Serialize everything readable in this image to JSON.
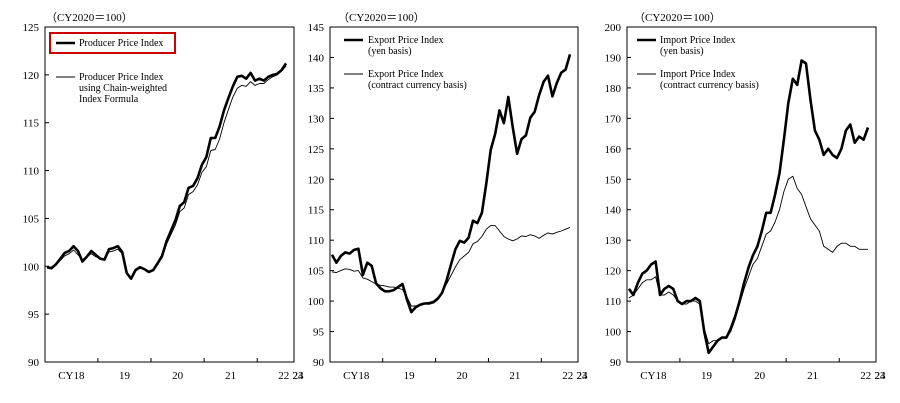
{
  "chart_data": [
    {
      "type": "line",
      "unit_label": "（CY2020＝100）",
      "ylim": [
        90,
        125
      ],
      "yticks": [
        "90",
        "95",
        "100",
        "105",
        "110",
        "115",
        "120",
        "125"
      ],
      "xticks": [
        "CY18",
        "19",
        "20",
        "21",
        "22",
        "23",
        "24"
      ],
      "legend_highlight": true,
      "series": [
        {
          "name": "Producer Price Index",
          "style": "thick",
          "color": "#000000",
          "values": [
            99.9,
            99.8,
            100.2,
            100.8,
            101.4,
            101.6,
            102.1,
            101.6,
            100.5,
            101.0,
            101.6,
            101.2,
            100.8,
            100.7,
            101.8,
            101.9,
            102.1,
            101.5,
            99.3,
            98.7,
            99.6,
            99.9,
            99.7,
            99.4,
            99.6,
            100.3,
            101.1,
            102.6,
            103.7,
            104.8,
            106.3,
            106.7,
            108.2,
            108.4,
            109.2,
            110.6,
            111.4,
            113.4,
            113.4,
            114.6,
            116.3,
            117.6,
            118.8,
            119.8,
            119.9,
            119.6,
            120.2,
            119.4,
            119.6,
            119.4,
            119.8,
            120.0,
            120.1,
            120.5,
            121.2
          ]
        },
        {
          "name": "Producer Price Index using Chain-weighted Index Formula",
          "style": "thin",
          "color": "#000000",
          "values": [
            99.9,
            99.9,
            100.1,
            100.6,
            101.1,
            101.3,
            101.7,
            101.2,
            100.7,
            101.0,
            101.3,
            101.0,
            100.8,
            100.7,
            101.5,
            101.6,
            101.8,
            101.3,
            99.4,
            98.8,
            99.5,
            99.8,
            99.7,
            99.5,
            99.6,
            100.2,
            100.9,
            102.3,
            103.3,
            104.3,
            105.7,
            106.1,
            107.5,
            107.8,
            108.5,
            109.8,
            110.4,
            112.1,
            112.2,
            113.3,
            115.0,
            116.4,
            117.7,
            118.6,
            118.9,
            118.8,
            119.3,
            118.9,
            119.1,
            119.1,
            119.5,
            119.8,
            120.0,
            120.4,
            120.9
          ]
        }
      ],
      "legend_labels": [
        [
          "Producer Price Index"
        ],
        [
          "Producer Price Index",
          "using Chain-weighted",
          "Index Formula"
        ]
      ]
    },
    {
      "type": "line",
      "unit_label": "（CY2020＝100）",
      "ylim": [
        90,
        145
      ],
      "yticks": [
        "90",
        "95",
        "100",
        "105",
        "110",
        "115",
        "120",
        "125",
        "130",
        "135",
        "140",
        "145"
      ],
      "xticks": [
        "CY18",
        "19",
        "20",
        "21",
        "22",
        "23",
        "24"
      ],
      "legend_highlight": false,
      "series": [
        {
          "name": "Export Price Index (yen basis)",
          "style": "thick",
          "color": "#000000",
          "values": [
            107.6,
            106.3,
            107.4,
            108.0,
            107.8,
            108.4,
            108.6,
            104.3,
            106.3,
            105.8,
            102.9,
            102.1,
            101.6,
            101.6,
            101.8,
            102.3,
            102.8,
            100.3,
            98.2,
            99.0,
            99.4,
            99.6,
            99.6,
            99.8,
            100.4,
            101.4,
            103.4,
            106.0,
            108.5,
            109.9,
            109.6,
            110.4,
            113.2,
            112.8,
            114.5,
            119.3,
            124.8,
            127.4,
            131.3,
            129.2,
            133.5,
            128.6,
            124.2,
            126.6,
            127.2,
            130.1,
            131.1,
            133.8,
            136.0,
            137.0,
            133.6,
            135.8,
            137.5,
            138.0,
            140.5
          ]
        },
        {
          "name": "Export Price Index (contract currency basis)",
          "style": "thin",
          "color": "#000000",
          "values": [
            104.8,
            104.7,
            105.0,
            105.3,
            105.2,
            104.9,
            105.0,
            103.8,
            103.6,
            103.2,
            102.8,
            102.6,
            102.5,
            102.3,
            102.3,
            102.1,
            101.9,
            100.7,
            99.2,
            99.2,
            99.5,
            99.7,
            99.8,
            100.0,
            100.6,
            101.5,
            102.8,
            104.2,
            105.6,
            106.8,
            107.4,
            108.0,
            109.4,
            109.8,
            110.6,
            111.8,
            112.4,
            112.4,
            111.5,
            110.6,
            110.2,
            109.9,
            110.2,
            110.7,
            110.6,
            110.9,
            110.7,
            110.3,
            110.8,
            111.2,
            111.0,
            111.3,
            111.5,
            111.8,
            112.1
          ]
        }
      ],
      "legend_labels": [
        [
          "Export Price Index",
          "(yen basis)"
        ],
        [
          "Export Price Index",
          "(contract currency basis)"
        ]
      ]
    },
    {
      "type": "line",
      "unit_label": "（CY2020＝100）",
      "ylim": [
        90,
        200
      ],
      "yticks": [
        "90",
        "100",
        "110",
        "120",
        "130",
        "140",
        "150",
        "160",
        "170",
        "180",
        "190",
        "200"
      ],
      "xticks": [
        "CY18",
        "19",
        "20",
        "21",
        "22",
        "23",
        "24"
      ],
      "legend_highlight": false,
      "series": [
        {
          "name": "Import Price Index (yen basis)",
          "style": "thick",
          "color": "#000000",
          "values": [
            114,
            112,
            116,
            119,
            120,
            122,
            123,
            112,
            114,
            115,
            114,
            110,
            109,
            110,
            110,
            111,
            110,
            100,
            93,
            95,
            97,
            98,
            98,
            101,
            105,
            110,
            116,
            121,
            125,
            128,
            133,
            139,
            139,
            145,
            152,
            163,
            175,
            183,
            181,
            189,
            188,
            176,
            166,
            163,
            158,
            160,
            158,
            157,
            160,
            166,
            168,
            162,
            164,
            163,
            167
          ]
        },
        {
          "name": "Import Price Index (contract currency basis)",
          "style": "thin",
          "color": "#000000",
          "values": [
            111,
            112,
            114,
            116,
            117,
            117,
            118,
            112,
            112,
            113,
            112,
            110,
            109,
            109,
            110,
            110,
            109,
            101,
            96,
            97,
            97,
            98,
            98,
            100,
            104,
            109,
            114,
            118,
            122,
            124,
            128,
            132,
            133,
            136,
            140,
            146,
            150,
            151,
            147,
            145,
            141,
            137,
            135,
            133,
            128,
            127,
            126,
            128,
            129,
            129,
            128,
            128,
            127,
            127,
            127
          ]
        }
      ],
      "legend_labels": [
        [
          "Import Price Index",
          "(yen basis)"
        ],
        [
          "Import Price Index",
          "(contract currency basis)"
        ]
      ]
    }
  ]
}
